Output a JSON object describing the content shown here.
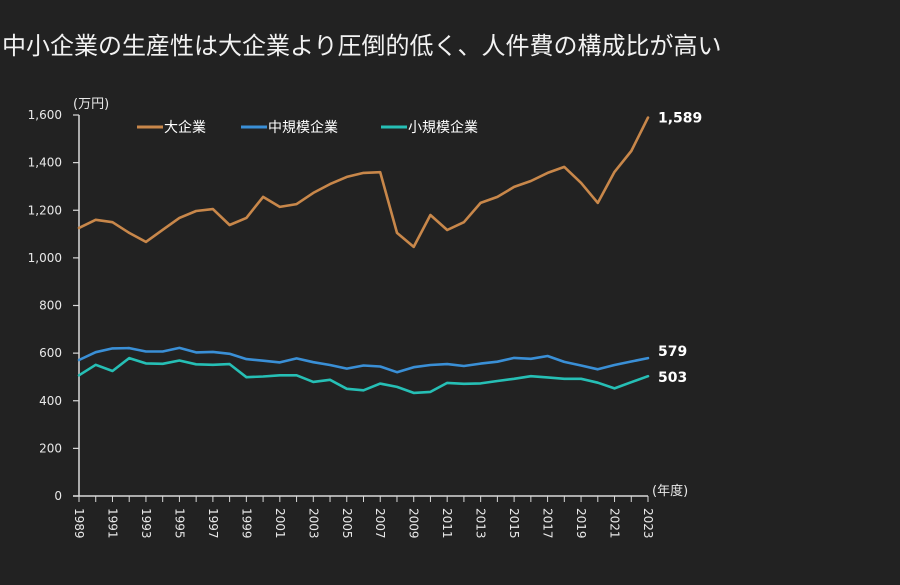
{
  "title": "中小企業の生産性は大企業より圧倒的低く、人件費の構成比が高い",
  "chart_data": {
    "type": "line",
    "title": "中小企業の生産性は大企業より圧倒的低く、人件費の構成比が高い",
    "ylabel": "(万円)",
    "xlabel": "(年度)",
    "ylim": [
      0,
      1600
    ],
    "yticks": [
      0,
      200,
      400,
      600,
      800,
      1000,
      1200,
      1400,
      1600
    ],
    "ytick_labels": [
      "0",
      "200",
      "400",
      "600",
      "800",
      "1,000",
      "1,200",
      "1,400",
      "1,600"
    ],
    "xtick_labels": [
      "1989",
      "1991",
      "1993",
      "1995",
      "1997",
      "1999",
      "2001",
      "2003",
      "2005",
      "2007",
      "2009",
      "2011",
      "2013",
      "2015",
      "2017",
      "2019",
      "2021",
      "2023"
    ],
    "grid": false,
    "legend_position": "top-left",
    "x": [
      1989,
      1990,
      1991,
      1992,
      1993,
      1994,
      1995,
      1996,
      1997,
      1998,
      1999,
      2000,
      2001,
      2002,
      2003,
      2004,
      2005,
      2006,
      2007,
      2008,
      2009,
      2010,
      2011,
      2012,
      2013,
      2014,
      2015,
      2016,
      2017,
      2018,
      2019,
      2020,
      2021,
      2022,
      2023
    ],
    "series": [
      {
        "name": "大企業",
        "color": "#c8874a",
        "end_label": "1,589",
        "values": [
          1126,
          1160,
          1150,
          1105,
          1067,
          1118,
          1168,
          1197,
          1205,
          1138,
          1168,
          1256,
          1214,
          1226,
          1273,
          1310,
          1340,
          1357,
          1360,
          1105,
          1046,
          1180,
          1117,
          1150,
          1231,
          1256,
          1298,
          1323,
          1357,
          1382,
          1315,
          1231,
          1361,
          1449,
          1589
        ]
      },
      {
        "name": "中規模企業",
        "color": "#3a8fd6",
        "end_label": "579",
        "values": [
          571,
          604,
          620,
          621,
          607,
          607,
          622,
          603,
          605,
          597,
          575,
          568,
          561,
          578,
          562,
          550,
          535,
          548,
          544,
          520,
          541,
          550,
          554,
          546,
          556,
          564,
          580,
          576,
          588,
          563,
          548,
          532,
          550,
          565,
          579
        ]
      },
      {
        "name": "小規模企業",
        "color": "#26bfb5",
        "end_label": "503",
        "values": [
          507,
          551,
          525,
          579,
          557,
          555,
          569,
          553,
          551,
          554,
          499,
          502,
          507,
          507,
          479,
          488,
          450,
          444,
          472,
          458,
          433,
          437,
          475,
          471,
          473,
          483,
          492,
          503,
          498,
          492,
          492,
          476,
          452,
          478,
          503
        ]
      }
    ]
  }
}
